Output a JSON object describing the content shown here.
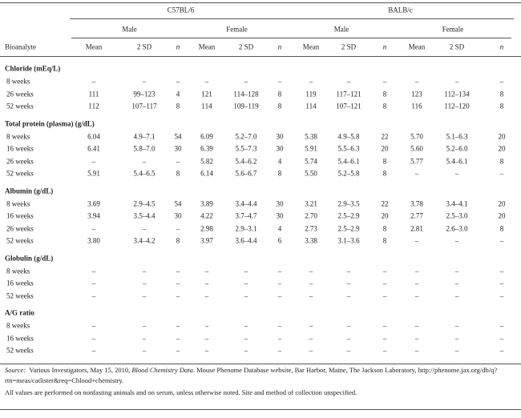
{
  "table": {
    "groups": [
      {
        "label": "C57BL/6",
        "sexes": [
          "Male",
          "Female"
        ]
      },
      {
        "label": "BALB/c",
        "sexes": [
          "Male",
          "Female"
        ]
      }
    ],
    "columns": [
      "Bioanalyte",
      "Mean",
      "2 SD",
      "n",
      "Mean",
      "2 SD",
      "n",
      "Mean",
      "2 SD",
      "n",
      "Mean",
      "2 SD",
      "n"
    ],
    "sections": [
      {
        "title": "Chloride (mEq/L)",
        "rows": [
          {
            "label": "8 weeks",
            "cells": [
              "–",
              "–",
              "–",
              "–",
              "–",
              "–",
              "–",
              "–",
              "–",
              "–",
              "–",
              "–"
            ]
          },
          {
            "label": "26 weeks",
            "cells": [
              "111",
              "99–123",
              "4",
              "121",
              "114–128",
              "8",
              "119",
              "117–121",
              "8",
              "123",
              "112–134",
              "8"
            ]
          },
          {
            "label": "52 weeks",
            "cells": [
              "112",
              "107–117",
              "8",
              "114",
              "109–119",
              "8",
              "114",
              "107–121",
              "8",
              "116",
              "112–120",
              "8"
            ]
          }
        ]
      },
      {
        "title": "Total protein (plasma) (g/dL)",
        "rows": [
          {
            "label": "8 weeks",
            "cells": [
              "6.04",
              "4.9–7.1",
              "54",
              "6.09",
              "5.2–7.0",
              "30",
              "5.38",
              "4.9–5.8",
              "22",
              "5.70",
              "5.1–6.3",
              "20"
            ]
          },
          {
            "label": "16 weeks",
            "cells": [
              "6.41",
              "5.8–7.0",
              "30",
              "6.39",
              "5.5–7.3",
              "30",
              "5.91",
              "5.5–6.3",
              "20",
              "5.60",
              "5.2–6.0",
              "20"
            ]
          },
          {
            "label": "26 weeks",
            "cells": [
              "–",
              "–",
              "–",
              "5.82",
              "5.4–6.2",
              "4",
              "5.74",
              "5.4–6.1",
              "8",
              "5.77",
              "5.4–6.1",
              "8"
            ]
          },
          {
            "label": "52 weeks",
            "cells": [
              "5.91",
              "5.4–6.5",
              "8",
              "6.14",
              "5.6–6.7",
              "8",
              "5.50",
              "5.2–5.8",
              "8",
              "–",
              "–",
              "–"
            ]
          }
        ]
      },
      {
        "title": "Albumin (g/dL)",
        "rows": [
          {
            "label": "8 weeks",
            "cells": [
              "3.69",
              "2.9–4.5",
              "54",
              "3.89",
              "3.4–4.4",
              "30",
              "3.21",
              "2.9–3.5",
              "22",
              "3.78",
              "3.4–4.1",
              "20"
            ]
          },
          {
            "label": "16 weeks",
            "cells": [
              "3.94",
              "3.5–4.4",
              "30",
              "4.22",
              "3.7–4.7",
              "30",
              "2.70",
              "2.5–2.9",
              "20",
              "2.77",
              "2.5–3.0",
              "20"
            ]
          },
          {
            "label": "26 weeks",
            "cells": [
              "–",
              "–",
              "–",
              "2.98",
              "2.9–3.1",
              "4",
              "2.73",
              "2.5–2.9",
              "8",
              "2.81",
              "2.6–3.0",
              "8"
            ]
          },
          {
            "label": "52 weeks",
            "cells": [
              "3.80",
              "3.4–4.2",
              "8",
              "3.97",
              "3.6–4.4",
              "6",
              "3.38",
              "3.1–3.6",
              "8",
              "–",
              "–",
              "–"
            ]
          }
        ]
      },
      {
        "title": "Globulin (g/dL)",
        "rows": [
          {
            "label": "8 weeks",
            "cells": [
              "–",
              "–",
              "–",
              "–",
              "–",
              "–",
              "–",
              "–",
              "–",
              "–",
              "–",
              "–"
            ]
          },
          {
            "label": "16 weeks",
            "cells": [
              "–",
              "–",
              "–",
              "–",
              "–",
              "–",
              "–",
              "–",
              "–",
              "–",
              "–",
              "–"
            ]
          },
          {
            "label": "52 weeks",
            "cells": [
              "–",
              "–",
              "–",
              "–",
              "–",
              "–",
              "–",
              "–",
              "–",
              "–",
              "–",
              "–"
            ]
          }
        ]
      },
      {
        "title": "A/G ratio",
        "rows": [
          {
            "label": "8 weeks",
            "cells": [
              "–",
              "–",
              "–",
              "–",
              "–",
              "–",
              "–",
              "–",
              "–",
              "–",
              "–",
              "–"
            ]
          },
          {
            "label": "16 weeks",
            "cells": [
              "–",
              "–",
              "–",
              "–",
              "–",
              "–",
              "–",
              "–",
              "–",
              "–",
              "–",
              "–"
            ]
          },
          {
            "label": "52 weeks",
            "cells": [
              "–",
              "–",
              "–",
              "–",
              "–",
              "–",
              "–",
              "–",
              "–",
              "–",
              "–",
              "–"
            ]
          }
        ]
      }
    ]
  },
  "footnote": {
    "source_label": "Source:",
    "source_text_1": "Various Investigators, May 15, 2010, ",
    "source_title": "Blood Chemistry Data",
    "source_text_2": ". Mouse Phenome Database website, Bar Harbor, Maine, The Jackson Laboratory, http://phenome.jax.org/db/q?rtn=meas/catlister&req=Cblood+chemistry.",
    "note": "All values are performed on nonfasting animals and on serum, unless otherwise noted. Site and method of collection unspecified."
  }
}
